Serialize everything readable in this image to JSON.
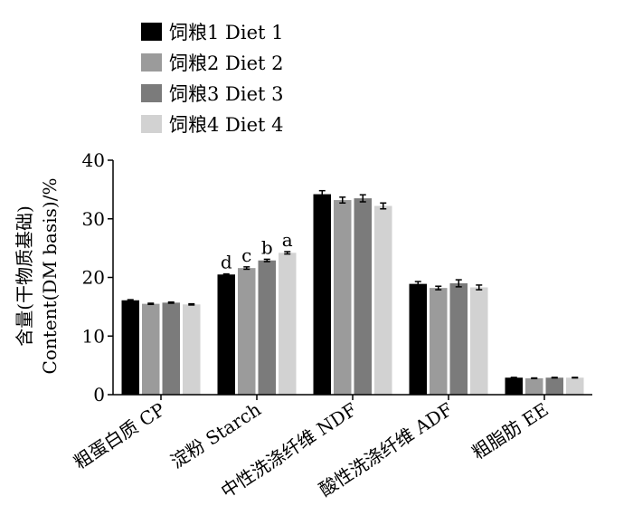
{
  "chart_data": {
    "type": "bar",
    "title": "",
    "ylabel_zh": "含量(干物质基础)",
    "ylabel_en": "Content(DM basis)/%",
    "ylim": [
      0,
      40
    ],
    "yticks": [
      0,
      10,
      20,
      30,
      40
    ],
    "legend_position": "top-left",
    "grid": false,
    "categories": [
      "粗蛋白质 CP",
      "淀粉 Starch",
      "中性洗涤纤维 NDF",
      "酸性洗涤纤维 ADF",
      "粗脂肪 EE"
    ],
    "series": [
      {
        "name": "饲粮1 Diet 1",
        "color": "#000000",
        "values": [
          16.1,
          20.5,
          34.2,
          18.9,
          2.9
        ],
        "errors": [
          0.1,
          0.1,
          0.6,
          0.4,
          0.05
        ],
        "labels": [
          "",
          "d",
          "",
          "",
          ""
        ]
      },
      {
        "name": "饲粮2 Diet 2",
        "color": "#9b9b9b",
        "values": [
          15.5,
          21.6,
          33.2,
          18.2,
          2.8
        ],
        "errors": [
          0.1,
          0.2,
          0.5,
          0.3,
          0.05
        ],
        "labels": [
          "",
          "c",
          "",
          "",
          ""
        ]
      },
      {
        "name": "饲粮3 Diet 3",
        "color": "#7b7b7b",
        "values": [
          15.7,
          22.9,
          33.5,
          19.0,
          2.9
        ],
        "errors": [
          0.1,
          0.2,
          0.6,
          0.6,
          0.05
        ],
        "labels": [
          "",
          "b",
          "",
          "",
          ""
        ]
      },
      {
        "name": "饲粮4 Diet 4",
        "color": "#d2d2d2",
        "values": [
          15.4,
          24.2,
          32.2,
          18.3,
          2.9
        ],
        "errors": [
          0.1,
          0.2,
          0.5,
          0.4,
          0.05
        ],
        "labels": [
          "",
          "a",
          "",
          "",
          ""
        ]
      }
    ]
  }
}
